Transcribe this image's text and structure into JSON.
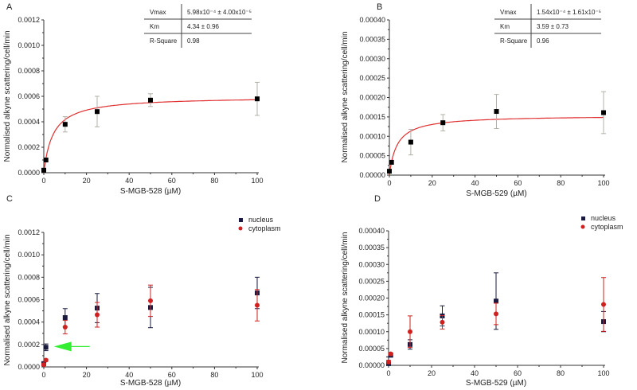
{
  "chart_data": [
    {
      "panel": "A",
      "type": "scatter",
      "xlabel": "S-MGB-528 (µM)",
      "ylabel": "Normalised alkyne scattering/cell/min",
      "xlim": [
        0,
        100
      ],
      "ylim": [
        0,
        0.0012
      ],
      "xticks": [
        0,
        20,
        40,
        60,
        80,
        100
      ],
      "yticks": [
        "0.0000",
        "0.0002",
        "0.0004",
        "0.0006",
        "0.0008",
        "0.0010",
        "0.0012"
      ],
      "series": [
        {
          "x": [
            0,
            1,
            10,
            25,
            50,
            100
          ],
          "y": [
            2e-05,
            0.0001,
            0.00038,
            0.00048,
            0.00057,
            0.00058
          ],
          "err": [
            5e-06,
            1e-05,
            6e-05,
            0.00012,
            5e-05,
            0.00013
          ],
          "marker": "square",
          "color": "#000000",
          "errcolor": "#b0b0a8"
        }
      ],
      "fit": {
        "model": "Michaelis-Menten",
        "vmax": 0.000598,
        "km": 4.34,
        "color": "#e03030"
      },
      "table": [
        [
          "Vmax",
          "5.98x10⁻⁴ ± 4.00x10⁻⁵"
        ],
        [
          "Km",
          "4.34 ± 0.96"
        ],
        [
          "R-Square",
          "0.98"
        ]
      ]
    },
    {
      "panel": "B",
      "type": "scatter",
      "xlabel": "S-MGB-529 (µM)",
      "ylabel": "Normalised alkyne scattering/cell/min",
      "xlim": [
        0,
        100
      ],
      "ylim": [
        0,
        0.0004
      ],
      "xticks": [
        0,
        20,
        40,
        60,
        80,
        100
      ],
      "yticks": [
        "0.00000",
        "0.00005",
        "0.00010",
        "0.00015",
        "0.00020",
        "0.00025",
        "0.00030",
        "0.00035",
        "0.00040"
      ],
      "series": [
        {
          "x": [
            0,
            1,
            10,
            25,
            50,
            100
          ],
          "y": [
            1e-05,
            3.3e-05,
            8.5e-05,
            0.000135,
            0.000164,
            0.000161
          ],
          "err": [
            2e-06,
            5e-06,
            3.3e-05,
            2.1e-05,
            4.4e-05,
            5.4e-05
          ],
          "marker": "square",
          "color": "#000000",
          "errcolor": "#b0b0a8"
        }
      ],
      "fit": {
        "model": "Michaelis-Menten",
        "vmax": 0.000154,
        "km": 3.59,
        "color": "#e03030"
      },
      "table": [
        [
          "Vmax",
          "1.54x10⁻⁴ ± 1.61x10⁻⁵"
        ],
        [
          "Km",
          "3.59 ± 0.73"
        ],
        [
          "R-Square",
          "0.96"
        ]
      ]
    },
    {
      "panel": "C",
      "type": "scatter",
      "xlabel": "S-MGB-528 (µM)",
      "ylabel": "Normalised alkyne scattering/cell/min",
      "xlim": [
        0,
        100
      ],
      "ylim": [
        0,
        0.0012
      ],
      "xticks": [
        0,
        20,
        40,
        60,
        80,
        100
      ],
      "yticks": [
        "0.0000",
        "0.0002",
        "0.0004",
        "0.0006",
        "0.0008",
        "0.0010",
        "0.0012"
      ],
      "legend": "top-right",
      "series": [
        {
          "name": "nucleus",
          "x": [
            0,
            1,
            10,
            25,
            50,
            100
          ],
          "y": [
            3e-05,
            0.000175,
            0.00044,
            0.000525,
            0.00053,
            0.00066
          ],
          "err": [
            1e-05,
            3e-05,
            8e-05,
            0.00013,
            0.00018,
            0.00014
          ],
          "marker": "square",
          "color": "#1a1a40"
        },
        {
          "name": "cytoplasm",
          "x": [
            0,
            1,
            10,
            25,
            50,
            100
          ],
          "y": [
            2e-05,
            6e-05,
            0.000355,
            0.000465,
            0.00059,
            0.00055
          ],
          "err": [
            1e-05,
            1e-05,
            6e-05,
            0.00011,
            0.00014,
            0.00014
          ],
          "marker": "circle",
          "color": "#d02020"
        }
      ],
      "annotation": {
        "type": "arrow",
        "color": "#33ee33",
        "points_to": {
          "x": 1,
          "y": 0.000175
        }
      }
    },
    {
      "panel": "D",
      "type": "scatter",
      "xlabel": "S-MGB-529 (µM)",
      "ylabel": "Normalised alkyne scattering/cell/min",
      "xlim": [
        0,
        100
      ],
      "ylim": [
        0,
        0.0004
      ],
      "xticks": [
        0,
        20,
        40,
        60,
        80,
        100
      ],
      "yticks": [
        "0.00000",
        "0.00005",
        "0.00010",
        "0.00015",
        "0.00020",
        "0.00025",
        "0.00030",
        "0.00035",
        "0.00040"
      ],
      "legend": "top-right",
      "series": [
        {
          "name": "nucleus",
          "x": [
            0,
            1,
            10,
            25,
            50,
            100
          ],
          "y": [
            5e-06,
            3e-05,
            6.2e-05,
            0.000147,
            0.000191,
            0.00013
          ],
          "err": [
            2e-05,
            5e-06,
            1.4e-05,
            3e-05,
            8.4e-05,
            3e-05
          ],
          "marker": "square",
          "color": "#1a1a40"
        },
        {
          "name": "cytoplasm",
          "x": [
            0,
            1,
            10,
            25,
            50,
            100
          ],
          "y": [
            1e-05,
            3.4e-05,
            0.0001,
            0.000128,
            0.000153,
            0.000181
          ],
          "err": [
            5e-06,
            3e-06,
            4.7e-05,
            2e-05,
            3.2e-05,
            8e-05
          ],
          "marker": "circle",
          "color": "#d02020"
        }
      ]
    }
  ]
}
